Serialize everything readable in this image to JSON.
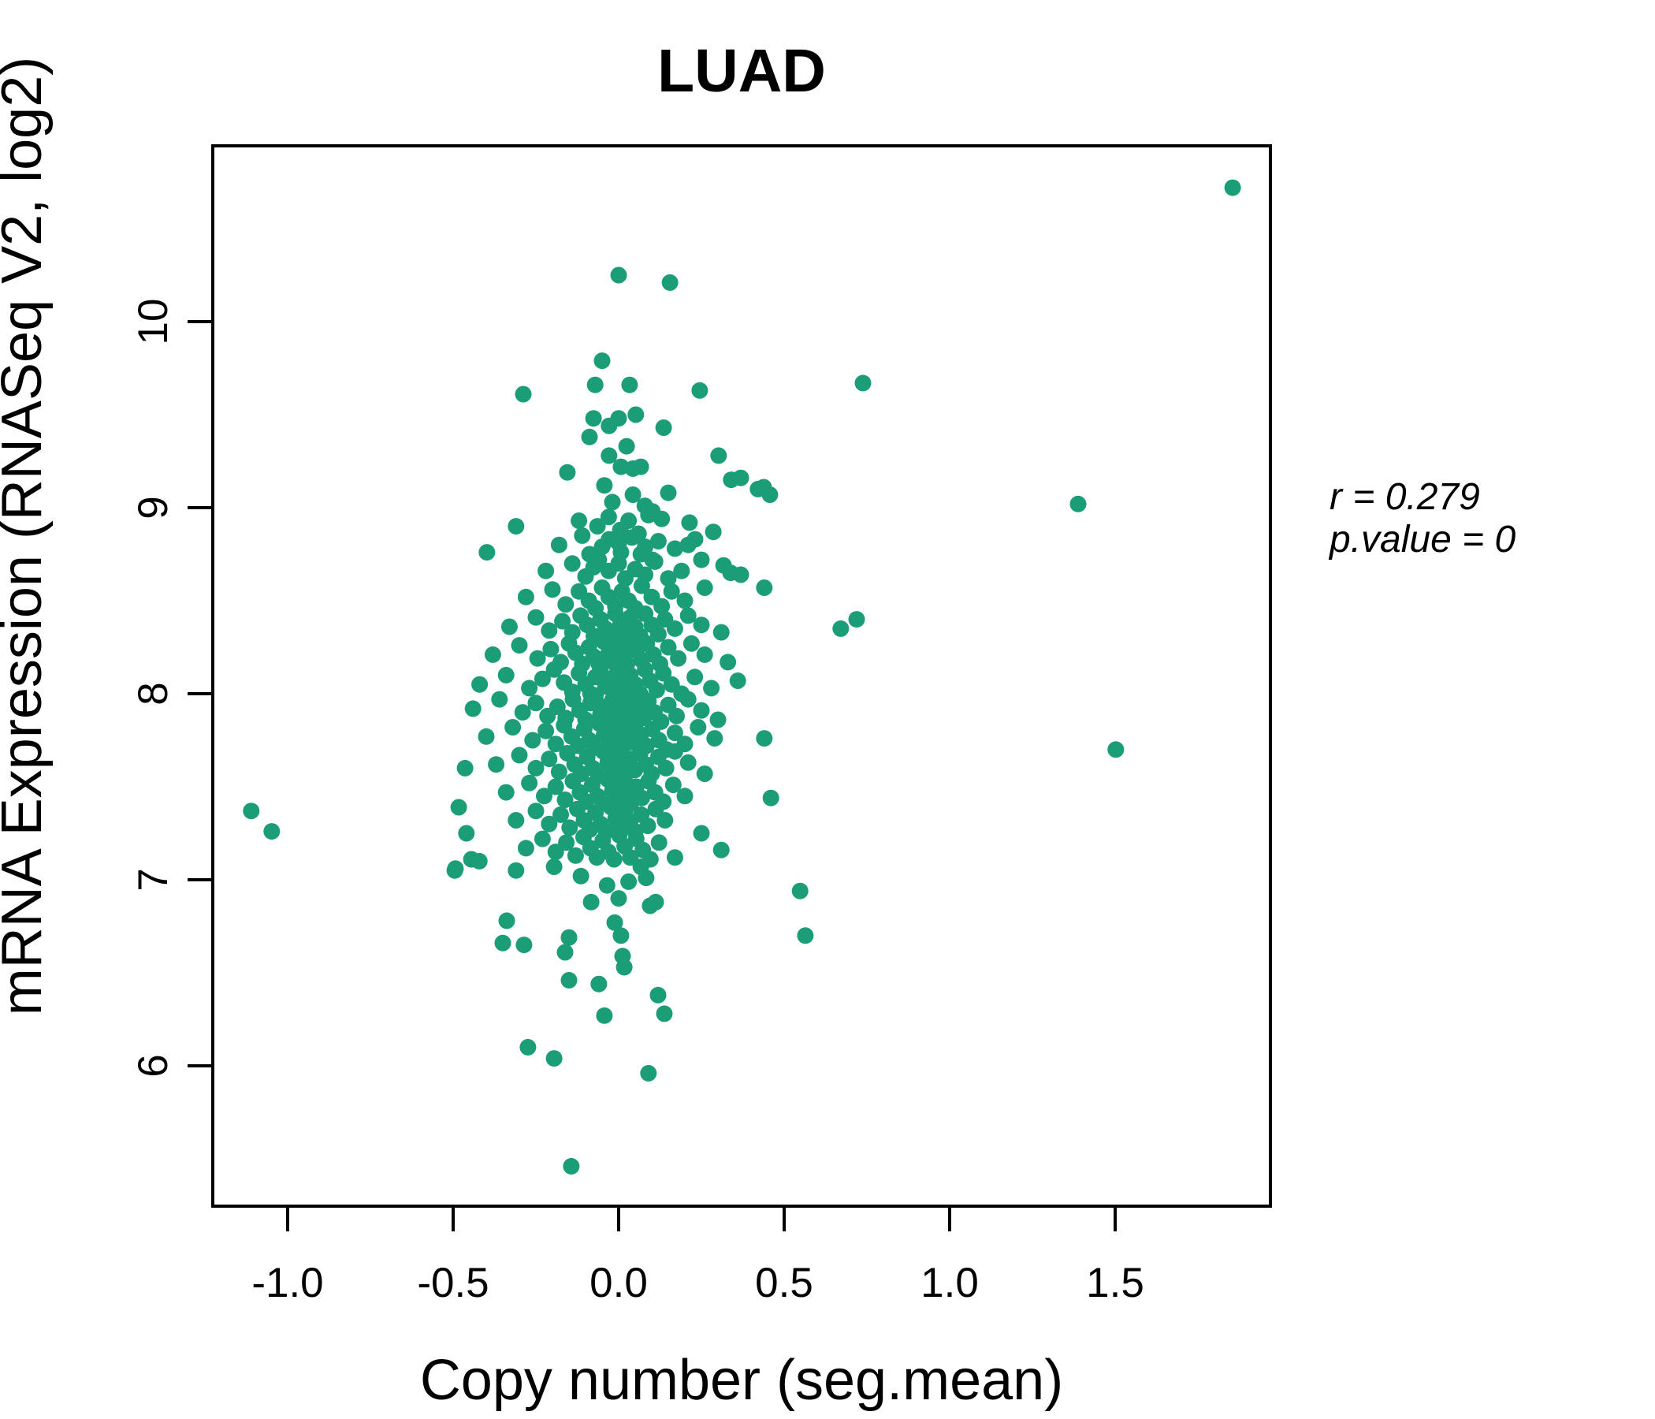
{
  "title": {
    "text": "LUAD",
    "color": "#1b9e77"
  },
  "y_axis": {
    "label": "mRNA Expression (RNASeq V2, log2)"
  },
  "x_axis": {
    "label": "Copy number (seg.mean)"
  },
  "annotation": {
    "line1": "r = 0.279",
    "line2": "p.value = 0"
  },
  "chart_data": {
    "type": "scatter",
    "title": "LUAD",
    "xlabel": "Copy number (seg.mean)",
    "ylabel": "mRNA Expression (RNASeq V2, log2)",
    "xlim": [
      -1.23,
      1.97
    ],
    "ylim": [
      5.25,
      10.95
    ],
    "grid": false,
    "legend": "none",
    "point_color": "#1b9e77",
    "title_color": "#1b9e77",
    "correlation_r": 0.279,
    "p_value": 0,
    "x_tick_labels": [
      "-1.0",
      "-0.5",
      "0.0",
      "0.5",
      "1.0",
      "1.5"
    ],
    "x_tick_values": [
      -1.0,
      -0.5,
      0.0,
      0.5,
      1.0,
      1.5
    ],
    "y_tick_labels": [
      "6",
      "7",
      "8",
      "9",
      "10"
    ],
    "y_tick_values": [
      6,
      7,
      8,
      9,
      10
    ],
    "points": [
      [
        1.855,
        10.72
      ],
      [
        0.0,
        10.25
      ],
      [
        0.155,
        10.21
      ],
      [
        0.738,
        9.67
      ],
      [
        1.388,
        9.02
      ],
      [
        1.502,
        7.7
      ],
      [
        -1.11,
        7.37
      ],
      [
        -1.048,
        7.26
      ],
      [
        -0.143,
        5.46
      ],
      [
        0.548,
        6.94
      ],
      [
        0.564,
        6.7
      ],
      [
        0.46,
        7.44
      ],
      [
        0.31,
        7.16
      ],
      [
        0.25,
        7.25
      ],
      [
        0.17,
        7.12
      ],
      [
        -0.05,
        9.79
      ],
      [
        -0.071,
        9.66
      ],
      [
        0.033,
        9.66
      ],
      [
        0.245,
        9.63
      ],
      [
        -0.288,
        9.61
      ],
      [
        0.052,
        9.5
      ],
      [
        -0.076,
        9.48
      ],
      [
        0.0,
        9.48
      ],
      [
        -0.029,
        9.44
      ],
      [
        0.136,
        9.43
      ],
      [
        -0.088,
        9.38
      ],
      [
        0.024,
        9.33
      ],
      [
        -0.029,
        9.28
      ],
      [
        0.302,
        9.28
      ],
      [
        -0.155,
        9.19
      ],
      [
        0.34,
        9.15
      ],
      [
        0.007,
        9.22
      ],
      [
        0.043,
        9.21
      ],
      [
        0.067,
        9.22
      ],
      [
        -0.043,
        9.12
      ],
      [
        0.15,
        9.08
      ],
      [
        0.421,
        9.1
      ],
      [
        -0.019,
        9.03
      ],
      [
        0.043,
        9.07
      ],
      [
        0.079,
        9.01
      ],
      [
        0.102,
        8.98
      ],
      [
        -0.31,
        8.9
      ],
      [
        -0.398,
        8.76
      ],
      [
        -0.064,
        8.9
      ],
      [
        0.005,
        8.88
      ],
      [
        -0.029,
        8.83
      ],
      [
        0.06,
        8.86
      ],
      [
        0.09,
        8.96
      ],
      [
        0.214,
        8.92
      ],
      [
        0.231,
        8.83
      ],
      [
        0.286,
        8.87
      ],
      [
        -0.088,
        8.75
      ],
      [
        0.007,
        8.76
      ],
      [
        -0.076,
        8.68
      ],
      [
        0.067,
        8.75
      ],
      [
        0.102,
        8.72
      ],
      [
        0.317,
        8.69
      ],
      [
        0.338,
        8.65
      ],
      [
        0.438,
        9.11
      ],
      [
        0.457,
        9.07
      ],
      [
        0.369,
        9.16
      ],
      [
        0.369,
        8.64
      ],
      [
        0.671,
        8.35
      ],
      [
        0.719,
        8.4
      ],
      [
        -0.495,
        7.05
      ],
      [
        -0.421,
        7.1
      ],
      [
        -0.31,
        7.05
      ],
      [
        -0.195,
        7.07
      ],
      [
        -0.114,
        7.02
      ],
      [
        -0.083,
        6.88
      ],
      [
        0.0,
        6.9
      ],
      [
        0.067,
        7.07
      ],
      [
        0.083,
        7.01
      ],
      [
        0.095,
        6.86
      ],
      [
        0.112,
        6.88
      ],
      [
        -0.338,
        6.78
      ],
      [
        -0.35,
        6.66
      ],
      [
        -0.286,
        6.65
      ],
      [
        -0.15,
        6.69
      ],
      [
        -0.162,
        6.61
      ],
      [
        -0.012,
        6.77
      ],
      [
        0.007,
        6.7
      ],
      [
        0.012,
        6.59
      ],
      [
        0.017,
        6.53
      ],
      [
        -0.15,
        6.46
      ],
      [
        -0.06,
        6.44
      ],
      [
        0.119,
        6.38
      ],
      [
        -0.043,
        6.27
      ],
      [
        0.138,
        6.28
      ],
      [
        -0.274,
        6.1
      ],
      [
        -0.195,
        6.04
      ],
      [
        0.09,
        5.96
      ],
      [
        -0.464,
        7.6
      ],
      [
        -0.483,
        7.39
      ],
      [
        -0.46,
        7.25
      ],
      [
        -0.445,
        7.11
      ],
      [
        -0.493,
        7.06
      ],
      [
        -0.12,
        8.93
      ],
      [
        -0.03,
        8.95
      ],
      [
        0.03,
        8.93
      ],
      [
        0.13,
        8.94
      ],
      [
        -0.18,
        8.8
      ],
      [
        -0.11,
        8.85
      ],
      [
        -0.05,
        8.79
      ],
      [
        0.0,
        8.81
      ],
      [
        0.04,
        8.84
      ],
      [
        0.08,
        8.79
      ],
      [
        0.12,
        8.82
      ],
      [
        0.17,
        8.78
      ],
      [
        0.21,
        8.8
      ],
      [
        -0.22,
        8.66
      ],
      [
        -0.14,
        8.7
      ],
      [
        -0.1,
        8.63
      ],
      [
        -0.06,
        8.72
      ],
      [
        -0.03,
        8.66
      ],
      [
        0.0,
        8.7
      ],
      [
        0.02,
        8.62
      ],
      [
        0.05,
        8.67
      ],
      [
        0.08,
        8.64
      ],
      [
        0.11,
        8.71
      ],
      [
        0.15,
        8.62
      ],
      [
        0.19,
        8.66
      ],
      [
        0.25,
        8.72
      ],
      [
        -0.28,
        8.52
      ],
      [
        -0.2,
        8.56
      ],
      [
        -0.16,
        8.48
      ],
      [
        -0.12,
        8.55
      ],
      [
        -0.09,
        8.5
      ],
      [
        -0.07,
        8.46
      ],
      [
        -0.05,
        8.57
      ],
      [
        -0.03,
        8.52
      ],
      [
        -0.01,
        8.47
      ],
      [
        0.01,
        8.55
      ],
      [
        0.03,
        8.5
      ],
      [
        0.05,
        8.46
      ],
      [
        0.07,
        8.58
      ],
      [
        0.1,
        8.52
      ],
      [
        0.13,
        8.47
      ],
      [
        0.16,
        8.55
      ],
      [
        0.2,
        8.5
      ],
      [
        0.26,
        8.57
      ],
      [
        0.44,
        8.57
      ],
      [
        -0.33,
        8.36
      ],
      [
        -0.25,
        8.41
      ],
      [
        -0.21,
        8.34
      ],
      [
        -0.17,
        8.39
      ],
      [
        -0.14,
        8.33
      ],
      [
        -0.115,
        8.42
      ],
      [
        -0.095,
        8.37
      ],
      [
        -0.075,
        8.31
      ],
      [
        -0.055,
        8.4
      ],
      [
        -0.04,
        8.35
      ],
      [
        -0.025,
        8.31
      ],
      [
        -0.01,
        8.43
      ],
      [
        0.005,
        8.37
      ],
      [
        0.02,
        8.32
      ],
      [
        0.035,
        8.41
      ],
      [
        0.05,
        8.36
      ],
      [
        0.065,
        8.31
      ],
      [
        0.08,
        8.43
      ],
      [
        0.1,
        8.37
      ],
      [
        0.12,
        8.32
      ],
      [
        0.14,
        8.4
      ],
      [
        0.17,
        8.35
      ],
      [
        0.21,
        8.42
      ],
      [
        0.25,
        8.37
      ],
      [
        0.31,
        8.33
      ],
      [
        -0.38,
        8.21
      ],
      [
        -0.3,
        8.26
      ],
      [
        -0.245,
        8.19
      ],
      [
        -0.205,
        8.24
      ],
      [
        -0.175,
        8.17
      ],
      [
        -0.15,
        8.27
      ],
      [
        -0.13,
        8.22
      ],
      [
        -0.11,
        8.16
      ],
      [
        -0.09,
        8.25
      ],
      [
        -0.075,
        8.2
      ],
      [
        -0.06,
        8.16
      ],
      [
        -0.045,
        8.28
      ],
      [
        -0.03,
        8.22
      ],
      [
        -0.015,
        8.17
      ],
      [
        0.0,
        8.26
      ],
      [
        0.012,
        8.21
      ],
      [
        0.025,
        8.16
      ],
      [
        0.04,
        8.28
      ],
      [
        0.055,
        8.23
      ],
      [
        0.07,
        8.18
      ],
      [
        0.085,
        8.27
      ],
      [
        0.105,
        8.21
      ],
      [
        0.125,
        8.16
      ],
      [
        0.15,
        8.25
      ],
      [
        0.18,
        8.19
      ],
      [
        0.22,
        8.27
      ],
      [
        0.26,
        8.21
      ],
      [
        0.33,
        8.17
      ],
      [
        -0.42,
        8.05
      ],
      [
        -0.34,
        8.1
      ],
      [
        -0.27,
        8.03
      ],
      [
        -0.23,
        8.08
      ],
      [
        -0.195,
        8.13
      ],
      [
        -0.165,
        8.06
      ],
      [
        -0.14,
        8.01
      ],
      [
        -0.12,
        8.11
      ],
      [
        -0.1,
        8.05
      ],
      [
        -0.085,
        8.0
      ],
      [
        -0.07,
        8.09
      ],
      [
        -0.055,
        8.13
      ],
      [
        -0.04,
        8.04
      ],
      [
        -0.027,
        8.08
      ],
      [
        -0.015,
        8.01
      ],
      [
        -0.003,
        8.12
      ],
      [
        0.01,
        8.06
      ],
      [
        0.022,
        8.01
      ],
      [
        0.035,
        8.1
      ],
      [
        0.05,
        8.05
      ],
      [
        0.065,
        8.0
      ],
      [
        0.08,
        8.13
      ],
      [
        0.095,
        8.07
      ],
      [
        0.115,
        8.02
      ],
      [
        0.135,
        8.11
      ],
      [
        0.16,
        8.05
      ],
      [
        0.19,
        8.0
      ],
      [
        0.23,
        8.09
      ],
      [
        0.28,
        8.03
      ],
      [
        0.36,
        8.07
      ],
      [
        -0.44,
        7.92
      ],
      [
        -0.36,
        7.97
      ],
      [
        -0.29,
        7.9
      ],
      [
        -0.25,
        7.95
      ],
      [
        -0.215,
        7.88
      ],
      [
        -0.185,
        7.93
      ],
      [
        -0.16,
        7.87
      ],
      [
        -0.138,
        7.97
      ],
      [
        -0.118,
        7.91
      ],
      [
        -0.1,
        7.86
      ],
      [
        -0.085,
        7.95
      ],
      [
        -0.07,
        7.99
      ],
      [
        -0.055,
        7.89
      ],
      [
        -0.042,
        7.93
      ],
      [
        -0.03,
        7.86
      ],
      [
        -0.018,
        7.97
      ],
      [
        -0.006,
        7.91
      ],
      [
        0.006,
        7.86
      ],
      [
        0.018,
        7.95
      ],
      [
        0.032,
        7.89
      ],
      [
        0.046,
        7.98
      ],
      [
        0.06,
        7.92
      ],
      [
        0.075,
        7.87
      ],
      [
        0.09,
        7.96
      ],
      [
        0.108,
        7.9
      ],
      [
        0.128,
        7.85
      ],
      [
        0.15,
        7.94
      ],
      [
        0.175,
        7.88
      ],
      [
        0.21,
        7.97
      ],
      [
        0.25,
        7.91
      ],
      [
        0.3,
        7.86
      ],
      [
        -0.4,
        7.77
      ],
      [
        -0.32,
        7.82
      ],
      [
        -0.26,
        7.75
      ],
      [
        -0.22,
        7.8
      ],
      [
        -0.19,
        7.73
      ],
      [
        -0.165,
        7.83
      ],
      [
        -0.142,
        7.77
      ],
      [
        -0.122,
        7.72
      ],
      [
        -0.104,
        7.81
      ],
      [
        -0.088,
        7.75
      ],
      [
        -0.073,
        7.71
      ],
      [
        -0.058,
        7.84
      ],
      [
        -0.044,
        7.78
      ],
      [
        -0.03,
        7.72
      ],
      [
        -0.017,
        7.82
      ],
      [
        -0.004,
        7.76
      ],
      [
        0.009,
        7.71
      ],
      [
        0.022,
        7.8
      ],
      [
        0.036,
        7.74
      ],
      [
        0.051,
        7.84
      ],
      [
        0.067,
        7.78
      ],
      [
        0.084,
        7.72
      ],
      [
        0.102,
        7.81
      ],
      [
        0.122,
        7.75
      ],
      [
        0.145,
        7.7
      ],
      [
        0.17,
        7.79
      ],
      [
        0.2,
        7.73
      ],
      [
        0.24,
        7.82
      ],
      [
        0.29,
        7.76
      ],
      [
        0.44,
        7.76
      ],
      [
        -0.37,
        7.62
      ],
      [
        -0.3,
        7.67
      ],
      [
        -0.25,
        7.6
      ],
      [
        -0.21,
        7.65
      ],
      [
        -0.18,
        7.58
      ],
      [
        -0.155,
        7.68
      ],
      [
        -0.133,
        7.62
      ],
      [
        -0.113,
        7.57
      ],
      [
        -0.095,
        7.66
      ],
      [
        -0.078,
        7.6
      ],
      [
        -0.062,
        7.56
      ],
      [
        -0.047,
        7.69
      ],
      [
        -0.033,
        7.63
      ],
      [
        -0.019,
        7.57
      ],
      [
        -0.006,
        7.67
      ],
      [
        0.007,
        7.61
      ],
      [
        0.02,
        7.56
      ],
      [
        0.034,
        7.65
      ],
      [
        0.049,
        7.59
      ],
      [
        0.065,
        7.68
      ],
      [
        0.082,
        7.62
      ],
      [
        0.1,
        7.57
      ],
      [
        0.12,
        7.66
      ],
      [
        0.143,
        7.6
      ],
      [
        0.17,
        7.69
      ],
      [
        0.21,
        7.63
      ],
      [
        0.26,
        7.57
      ],
      [
        -0.34,
        7.47
      ],
      [
        -0.27,
        7.52
      ],
      [
        -0.225,
        7.45
      ],
      [
        -0.19,
        7.5
      ],
      [
        -0.162,
        7.43
      ],
      [
        -0.138,
        7.53
      ],
      [
        -0.117,
        7.47
      ],
      [
        -0.098,
        7.42
      ],
      [
        -0.08,
        7.51
      ],
      [
        -0.064,
        7.45
      ],
      [
        -0.048,
        7.41
      ],
      [
        -0.033,
        7.54
      ],
      [
        -0.019,
        7.48
      ],
      [
        -0.005,
        7.42
      ],
      [
        0.008,
        7.52
      ],
      [
        0.022,
        7.46
      ],
      [
        0.037,
        7.41
      ],
      [
        0.053,
        7.5
      ],
      [
        0.07,
        7.44
      ],
      [
        0.09,
        7.53
      ],
      [
        0.11,
        7.47
      ],
      [
        0.135,
        7.42
      ],
      [
        0.165,
        7.51
      ],
      [
        0.2,
        7.45
      ],
      [
        -0.31,
        7.32
      ],
      [
        -0.25,
        7.37
      ],
      [
        -0.21,
        7.3
      ],
      [
        -0.175,
        7.35
      ],
      [
        -0.148,
        7.28
      ],
      [
        -0.125,
        7.38
      ],
      [
        -0.105,
        7.32
      ],
      [
        -0.087,
        7.27
      ],
      [
        -0.07,
        7.36
      ],
      [
        -0.054,
        7.3
      ],
      [
        -0.038,
        7.26
      ],
      [
        -0.023,
        7.39
      ],
      [
        -0.009,
        7.33
      ],
      [
        0.005,
        7.27
      ],
      [
        0.019,
        7.37
      ],
      [
        0.034,
        7.31
      ],
      [
        0.05,
        7.26
      ],
      [
        0.068,
        7.35
      ],
      [
        0.088,
        7.29
      ],
      [
        0.112,
        7.38
      ],
      [
        0.14,
        7.32
      ],
      [
        -0.28,
        7.17
      ],
      [
        -0.23,
        7.22
      ],
      [
        -0.19,
        7.15
      ],
      [
        -0.158,
        7.2
      ],
      [
        -0.13,
        7.13
      ],
      [
        -0.106,
        7.23
      ],
      [
        -0.085,
        7.17
      ],
      [
        -0.066,
        7.12
      ],
      [
        -0.048,
        7.21
      ],
      [
        -0.031,
        7.15
      ],
      [
        -0.014,
        7.11
      ],
      [
        0.002,
        7.24
      ],
      [
        0.018,
        7.18
      ],
      [
        0.035,
        7.12
      ],
      [
        0.053,
        7.22
      ],
      [
        0.073,
        7.16
      ],
      [
        0.096,
        7.11
      ],
      [
        0.122,
        7.2
      ],
      [
        -0.035,
        6.97
      ],
      [
        0.03,
        6.99
      ]
    ]
  }
}
